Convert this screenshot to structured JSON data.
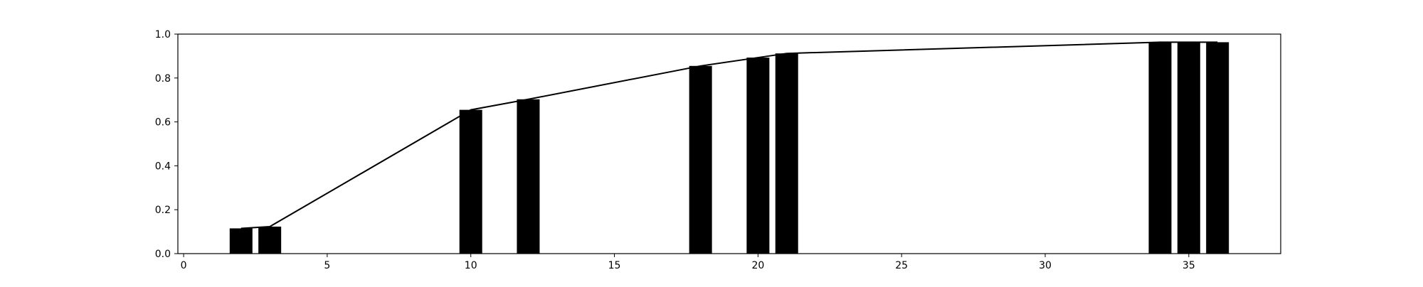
{
  "chart_data": {
    "type": "bar",
    "x": [
      2,
      3,
      10,
      12,
      18,
      20,
      21,
      34,
      35,
      36
    ],
    "values": [
      0.115,
      0.123,
      0.655,
      0.703,
      0.855,
      0.893,
      0.912,
      0.963,
      0.963,
      0.963
    ],
    "line": {
      "x": [
        2,
        3,
        10,
        12,
        18,
        20,
        21,
        34,
        35,
        36
      ],
      "y": [
        0.115,
        0.123,
        0.655,
        0.703,
        0.855,
        0.893,
        0.912,
        0.963,
        0.963,
        0.963
      ]
    },
    "title": "",
    "xlabel": "",
    "ylabel": "",
    "xlim": [
      -0.2,
      38.2
    ],
    "ylim": [
      0.0,
      1.0
    ],
    "xticks": [
      "0",
      "5",
      "10",
      "15",
      "20",
      "25",
      "30",
      "35"
    ],
    "yticks": [
      "0.0",
      "0.2",
      "0.4",
      "0.6",
      "0.8",
      "1.0"
    ],
    "grid": false,
    "legend": "none",
    "colors": {
      "bars": "#000000",
      "line": "#000000",
      "axes": "#000000",
      "background": "#ffffff"
    }
  }
}
